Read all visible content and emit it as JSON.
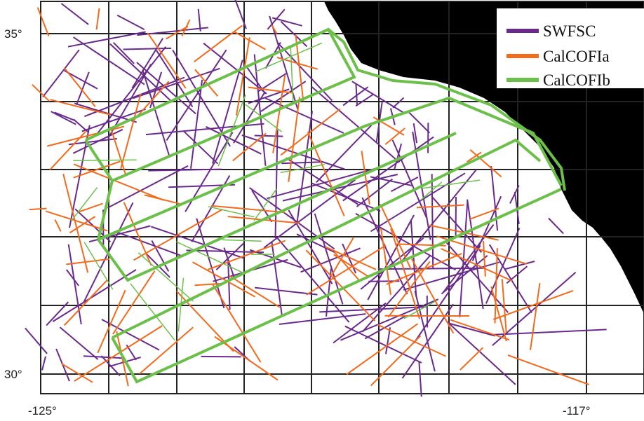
{
  "map": {
    "axes": {
      "lat_ticks": [
        {
          "label": "35°",
          "value": 35
        },
        {
          "label": "30°",
          "value": 30
        }
      ],
      "lon_ticks": [
        {
          "label": "-125°",
          "value": -125
        },
        {
          "label": "-117°",
          "value": -117
        }
      ]
    },
    "legend": {
      "placement": "top-right",
      "entries": [
        {
          "label": "SWFSC",
          "color": "#6a2a8c"
        },
        {
          "label": "CalCOFIa",
          "color": "#f26a1b"
        },
        {
          "label": "CalCOFIb",
          "color": "#6cc04a"
        }
      ]
    },
    "colors": {
      "land": "#000000",
      "water": "#ffffff",
      "grid": "#222222"
    },
    "grid": true
  }
}
